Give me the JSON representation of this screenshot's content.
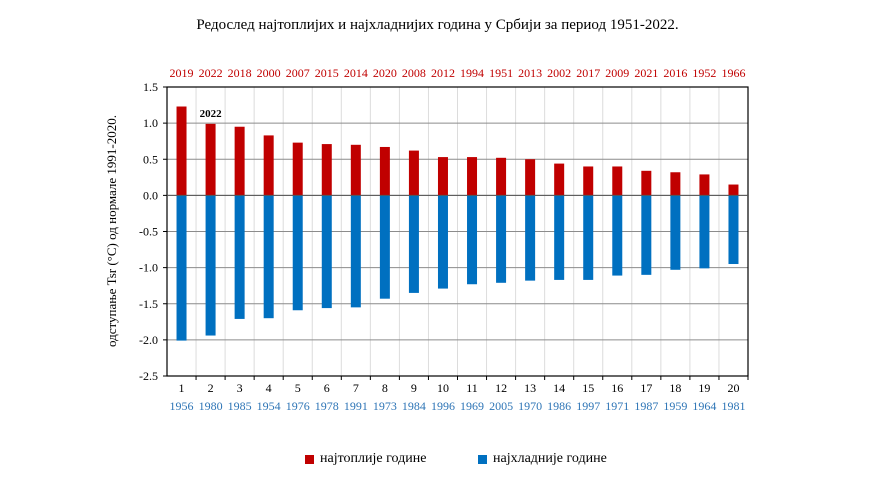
{
  "chart_data": {
    "type": "bar",
    "title": "Редослед најтоплијих и најхладнијих година у Србији за период 1951-2022.",
    "ylabel": "одступање Tsr (°C) од нормале 1991-2020.",
    "xlabel": "",
    "ylim": [
      -2.5,
      1.5
    ],
    "yticks": [
      "1.5",
      "1.0",
      "0.5",
      "0.0",
      "-0.5",
      "-1.0",
      "-1.5",
      "-2.0",
      "-2.5"
    ],
    "ytick_values": [
      1.5,
      1.0,
      0.5,
      0.0,
      -0.5,
      -1.0,
      -1.5,
      -2.0,
      -2.5
    ],
    "grid": true,
    "legend_position": "bottom",
    "categories": [
      "1",
      "2",
      "3",
      "4",
      "5",
      "6",
      "7",
      "8",
      "9",
      "10",
      "11",
      "12",
      "13",
      "14",
      "15",
      "16",
      "17",
      "18",
      "19",
      "20"
    ],
    "warm_years": [
      "2019",
      "2022",
      "2018",
      "2000",
      "2007",
      "2015",
      "2014",
      "2020",
      "2008",
      "2012",
      "1994",
      "1951",
      "2013",
      "2002",
      "2017",
      "2009",
      "2021",
      "2016",
      "1952",
      "1966"
    ],
    "cold_years": [
      "1956",
      "1980",
      "1985",
      "1954",
      "1976",
      "1978",
      "1991",
      "1973",
      "1984",
      "1996",
      "1969",
      "2005",
      "1970",
      "1986",
      "1997",
      "1971",
      "1987",
      "1959",
      "1964",
      "1981"
    ],
    "annotation": "2022",
    "series": [
      {
        "name": "најтоплије године",
        "color": "#c00000",
        "values": [
          1.23,
          0.99,
          0.95,
          0.83,
          0.73,
          0.71,
          0.7,
          0.67,
          0.62,
          0.53,
          0.53,
          0.52,
          0.5,
          0.44,
          0.4,
          0.4,
          0.34,
          0.32,
          0.29,
          0.15
        ]
      },
      {
        "name": "најхладније године",
        "color": "#0070c0",
        "values": [
          -2.01,
          -1.94,
          -1.71,
          -1.7,
          -1.59,
          -1.56,
          -1.55,
          -1.43,
          -1.35,
          -1.29,
          -1.23,
          -1.21,
          -1.18,
          -1.17,
          -1.17,
          -1.11,
          -1.1,
          -1.03,
          -1.01,
          -0.95
        ]
      }
    ]
  }
}
